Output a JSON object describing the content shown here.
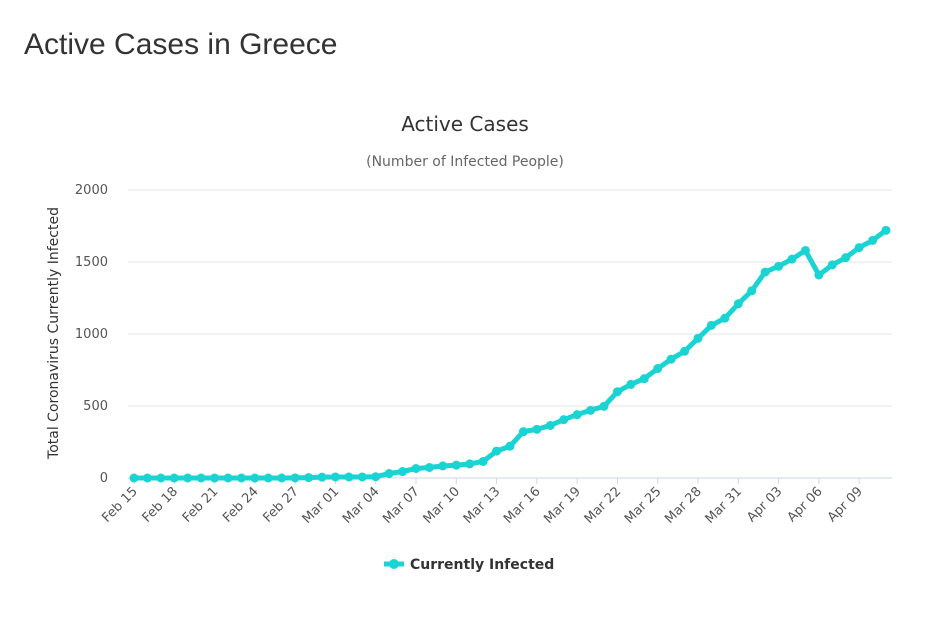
{
  "page": {
    "heading": "Active Cases in Greece"
  },
  "colors": {
    "series": "#1ad3d3",
    "grid": "#e6e6e6",
    "axis": "#ccd6eb"
  },
  "chart_data": {
    "type": "line",
    "title": "Active Cases",
    "subtitle": "(Number of Infected People)",
    "ylabel": "Total Coronavirus Currently Infected",
    "xlabel": "",
    "ylim": [
      0,
      2000
    ],
    "yticks": [
      0,
      500,
      1000,
      1500,
      2000
    ],
    "grid": true,
    "legend_placement": "bottom-center",
    "x_tick_labels": [
      "Feb 15",
      "Feb 18",
      "Feb 21",
      "Feb 24",
      "Feb 27",
      "Mar 01",
      "Mar 04",
      "Mar 07",
      "Mar 10",
      "Mar 13",
      "Mar 16",
      "Mar 19",
      "Mar 22",
      "Mar 25",
      "Mar 28",
      "Mar 31",
      "Apr 03",
      "Apr 06",
      "Apr 09"
    ],
    "x": [
      "Feb 15",
      "Feb 16",
      "Feb 17",
      "Feb 18",
      "Feb 19",
      "Feb 20",
      "Feb 21",
      "Feb 22",
      "Feb 23",
      "Feb 24",
      "Feb 25",
      "Feb 26",
      "Feb 27",
      "Feb 28",
      "Feb 29",
      "Mar 01",
      "Mar 02",
      "Mar 03",
      "Mar 04",
      "Mar 05",
      "Mar 06",
      "Mar 07",
      "Mar 08",
      "Mar 09",
      "Mar 10",
      "Mar 11",
      "Mar 12",
      "Mar 13",
      "Mar 14",
      "Mar 15",
      "Mar 16",
      "Mar 17",
      "Mar 18",
      "Mar 19",
      "Mar 20",
      "Mar 21",
      "Mar 22",
      "Mar 23",
      "Mar 24",
      "Mar 25",
      "Mar 26",
      "Mar 27",
      "Mar 28",
      "Mar 29",
      "Mar 30",
      "Mar 31",
      "Apr 01",
      "Apr 02",
      "Apr 03",
      "Apr 04",
      "Apr 05",
      "Apr 06",
      "Apr 07",
      "Apr 08",
      "Apr 09",
      "Apr 10",
      "Apr 11"
    ],
    "series": [
      {
        "name": "Currently Infected",
        "values": [
          0,
          0,
          0,
          0,
          0,
          0,
          0,
          0,
          0,
          0,
          0,
          0,
          1,
          3,
          6,
          7,
          7,
          7,
          9,
          31,
          45,
          66,
          73,
          84,
          89,
          98,
          115,
          187,
          221,
          322,
          338,
          365,
          405,
          440,
          470,
          498,
          599,
          650,
          690,
          760,
          825,
          880,
          970,
          1060,
          1110,
          1210,
          1300,
          1430,
          1470,
          1520,
          1580,
          1410,
          1480,
          1530,
          1600,
          1650,
          1720
        ]
      }
    ]
  }
}
